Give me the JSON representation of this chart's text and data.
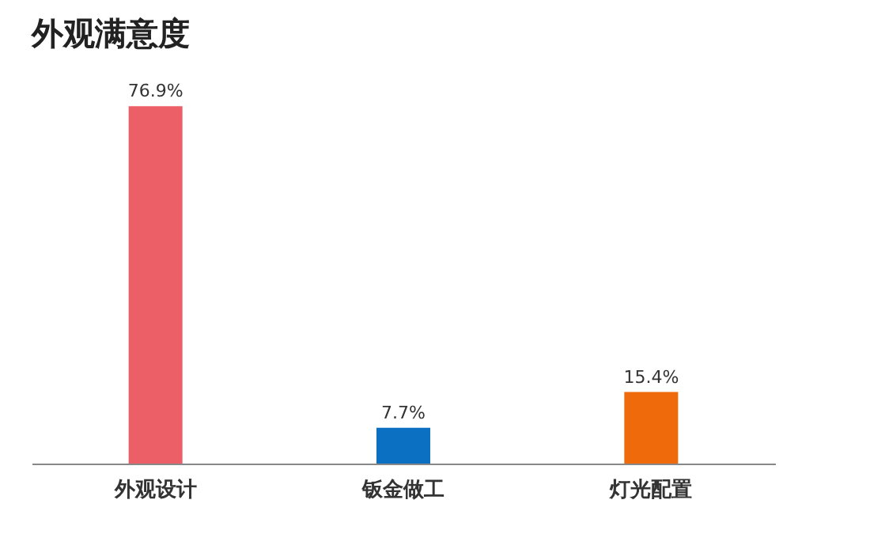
{
  "chart_data": {
    "type": "bar",
    "title": "外观满意度",
    "categories": [
      "外观设计",
      "钣金做工",
      "灯光配置"
    ],
    "values": [
      76.9,
      7.7,
      15.4
    ],
    "colors": [
      "#ec5f67",
      "#0b6fc2",
      "#ee6a0a"
    ],
    "value_labels": [
      "76.9%",
      "7.7%",
      "15.4%"
    ],
    "grid": false,
    "tick_labels": "x"
  }
}
